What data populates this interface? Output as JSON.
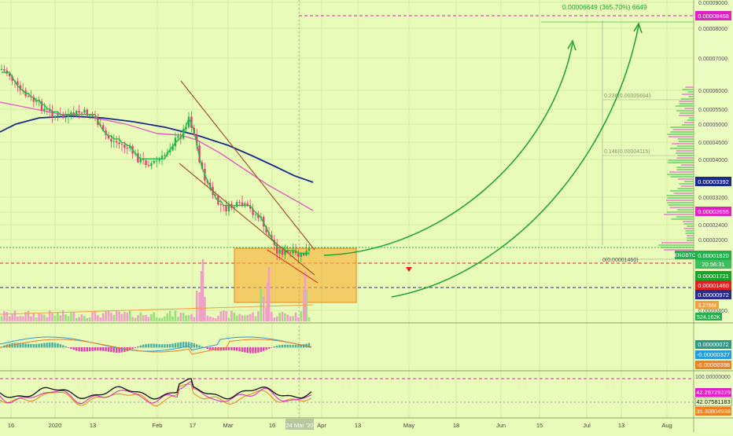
{
  "colors": {
    "background": "#e8fbb8",
    "up": "#22b14c",
    "down": "#e0407a",
    "ma_blue": "#1a2a8c",
    "ma_pink": "#e060c0",
    "trend": "#a05a2c",
    "arrow": "#1aa32a",
    "box_fill": "#f7b23b",
    "box_stroke": "#e58a1f",
    "price_red": "#e02020",
    "price_navy": "#2a2a8a",
    "price_magenta": "#e020c0"
  },
  "chart_data": [
    {
      "type": "candlestick",
      "title": "",
      "symbol": "ENGBTC",
      "ylim": [
        6e-07,
        9e-06
      ],
      "x_tick_labels": [
        "16",
        "2020",
        "13",
        "Feb",
        "17",
        "Mar",
        "16",
        "24 Mar '20",
        "Apr",
        "13",
        "May",
        "18",
        "Jun",
        "15",
        "Jul",
        "13",
        "Aug"
      ],
      "y_tick_labels": [
        "0.00009000",
        "0.00008000",
        "0.00007000",
        "0.00006000",
        "0.00005500",
        "0.00005000",
        "0.00004500",
        "0.00004000",
        "0.00003200",
        "0.00002800",
        "0.00002400",
        "0.00002000",
        "0.00000800"
      ],
      "price_labels": {
        "target": "0.00008468",
        "blue_line": "0.00003392",
        "magenta_line": "0.00002655",
        "current": "0.00001820",
        "countdown": "20:56:31",
        "green_tag": "0.00001721",
        "red_tag": "0.00001460",
        "navy_tag": "0.00000972"
      },
      "symbol_tag": "ENGBTC",
      "fib_levels": [
        {
          "label": "0.236(0.00005694)",
          "value": 5.694e-05
        },
        {
          "label": "0.146(0.00004115)",
          "value": 4.115e-05
        },
        {
          "label": "0(0.00001460)",
          "value": 1.46e-05
        }
      ],
      "annotation": "0.00006649 (365.70%) 6649",
      "volume_labels": [
        "3.276M",
        "524.162K"
      ],
      "projection": {
        "from": 1.82e-05,
        "to": 8.468e-05
      }
    },
    {
      "type": "bar",
      "title": "MACD",
      "value_labels": [
        "0.00000072",
        "-0.00000327",
        "-0.00000398"
      ]
    },
    {
      "type": "line",
      "title": "Stochastic RSI",
      "y_tick_labels": [
        "100.00000000"
      ],
      "value_labels": [
        "42.29729229",
        "42.07581183",
        "35.30804938"
      ]
    }
  ]
}
